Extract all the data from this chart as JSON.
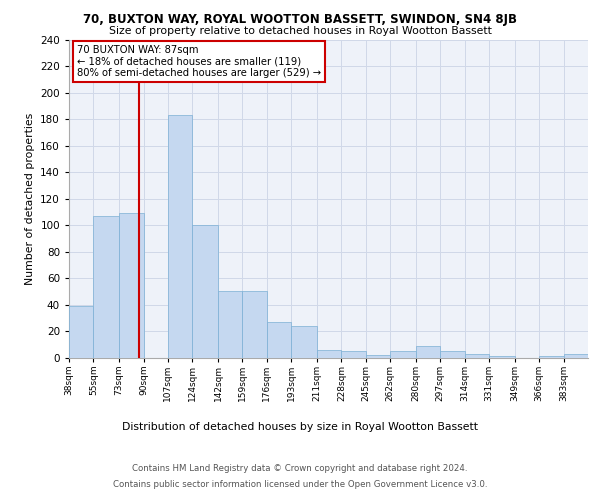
{
  "title": "70, BUXTON WAY, ROYAL WOOTTON BASSETT, SWINDON, SN4 8JB",
  "subtitle": "Size of property relative to detached houses in Royal Wootton Bassett",
  "xlabel": "Distribution of detached houses by size in Royal Wootton Bassett",
  "ylabel": "Number of detached properties",
  "footnote1": "Contains HM Land Registry data © Crown copyright and database right 2024.",
  "footnote2": "Contains public sector information licensed under the Open Government Licence v3.0.",
  "bin_labels": [
    "38sqm",
    "55sqm",
    "73sqm",
    "90sqm",
    "107sqm",
    "124sqm",
    "142sqm",
    "159sqm",
    "176sqm",
    "193sqm",
    "211sqm",
    "228sqm",
    "245sqm",
    "262sqm",
    "280sqm",
    "297sqm",
    "314sqm",
    "331sqm",
    "349sqm",
    "366sqm",
    "383sqm"
  ],
  "values": [
    39,
    107,
    109,
    0,
    183,
    100,
    50,
    50,
    27,
    24,
    6,
    5,
    2,
    5,
    9,
    5,
    3,
    1,
    0,
    1,
    3
  ],
  "bar_color": "#c5d8f0",
  "bar_edge_color": "#7bafd4",
  "grid_color": "#d0d8e8",
  "background_color": "#eef2f9",
  "red_line_x": 87,
  "annotation_text": "70 BUXTON WAY: 87sqm\n← 18% of detached houses are smaller (119)\n80% of semi-detached houses are larger (529) →",
  "annotation_box_color": "#ffffff",
  "annotation_border_color": "#cc0000",
  "ylim": [
    0,
    240
  ],
  "yticks": [
    0,
    20,
    40,
    60,
    80,
    100,
    120,
    140,
    160,
    180,
    200,
    220,
    240
  ],
  "bin_edges": [
    38,
    55,
    73,
    90,
    107,
    124,
    142,
    159,
    176,
    193,
    211,
    228,
    245,
    262,
    280,
    297,
    314,
    331,
    349,
    366,
    383,
    400
  ]
}
